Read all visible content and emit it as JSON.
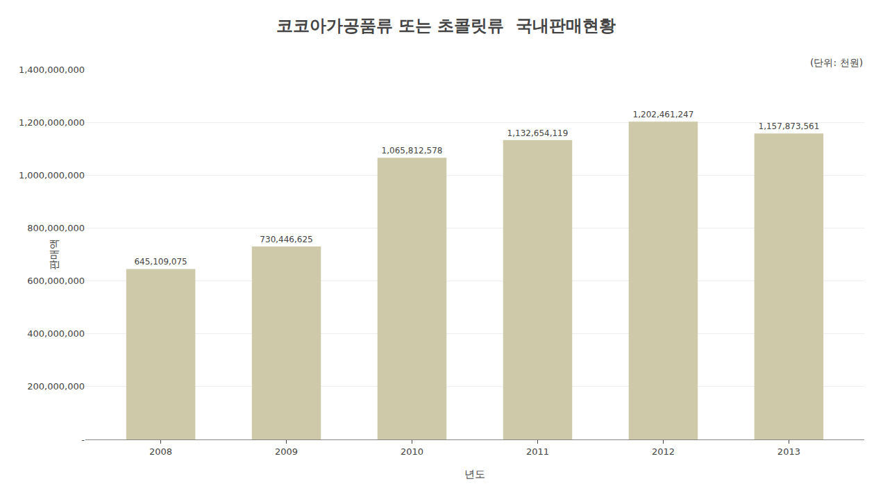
{
  "chart_data": {
    "type": "bar",
    "title": "코코아가공품류 또는 초콜릿류  국내판매현황",
    "annotations": [
      "(단위: 천원)"
    ],
    "xlabel": "년도",
    "ylabel": "판매액",
    "categories": [
      "2008",
      "2009",
      "2010",
      "2011",
      "2012",
      "2013"
    ],
    "values": [
      645109075,
      730446625,
      1065812578,
      1132654119,
      1202461247,
      1157873561
    ],
    "value_labels": [
      "645,109,075",
      "730,446,625",
      "1,065,812,578",
      "1,132,654,119",
      "1,202,461,247",
      "1,157,873,561"
    ],
    "data_labels": true,
    "color": "#cec9a8",
    "ylim": [
      0,
      1400000000
    ],
    "yticks": [
      {
        "value": 0,
        "label": "-"
      },
      {
        "value": 200000000,
        "label": "200,000,000"
      },
      {
        "value": 400000000,
        "label": "400,000,000"
      },
      {
        "value": 600000000,
        "label": "600,000,000"
      },
      {
        "value": 800000000,
        "label": "800,000,000"
      },
      {
        "value": 1000000000,
        "label": "1,000,000,000"
      },
      {
        "value": 1200000000,
        "label": "1,200,000,000"
      },
      {
        "value": 1400000000,
        "label": "1,400,000,000"
      }
    ],
    "grid": true
  }
}
